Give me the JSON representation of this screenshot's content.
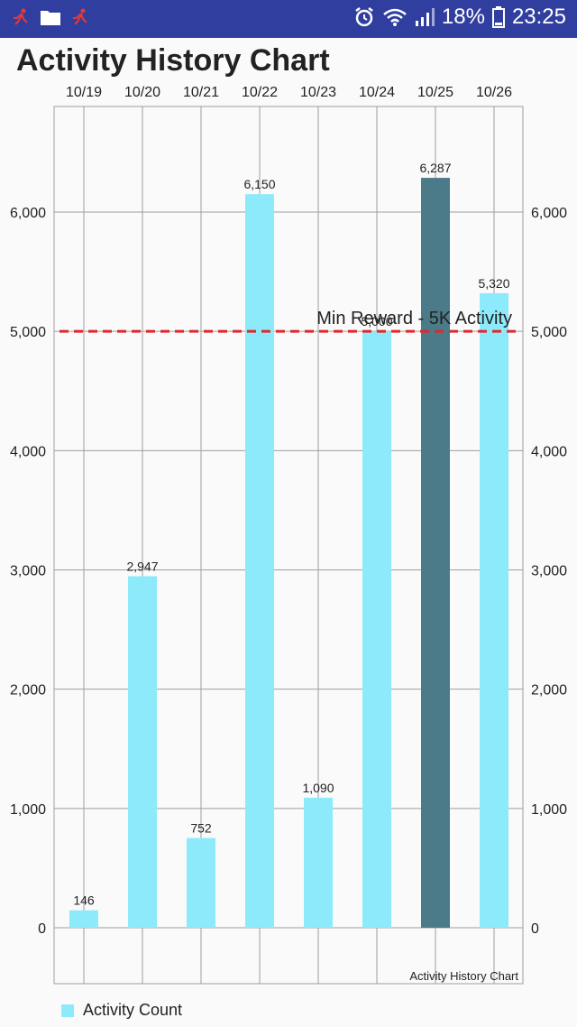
{
  "status_bar": {
    "battery": "18%",
    "time": "23:25",
    "icons": [
      "running-icon",
      "folder-icon",
      "running-icon",
      "alarm-icon",
      "wifi-icon",
      "signal-icon",
      "battery-icon"
    ]
  },
  "page": {
    "title": "Activity History Chart"
  },
  "chart_data": {
    "type": "bar",
    "title": "Activity History Chart",
    "description_label": "Activity History Chart",
    "categories": [
      "10/19",
      "10/20",
      "10/21",
      "10/22",
      "10/23",
      "10/24",
      "10/25",
      "10/26"
    ],
    "series": [
      {
        "name": "Activity Count",
        "values": [
          146,
          2947,
          752,
          6150,
          1090,
          5000,
          6287,
          5320
        ],
        "labels": [
          "146",
          "2,947",
          "752",
          "6,150",
          "1,090",
          "5,000",
          "6,287",
          "5,320"
        ]
      }
    ],
    "highlight_index": 6,
    "colors": {
      "bar": "#8ceafb",
      "highlight": "#4b7b88",
      "limit_line": "#e3262b"
    },
    "y_ticks": [
      0,
      1000,
      2000,
      3000,
      4000,
      5000,
      6000
    ],
    "y_tick_labels": [
      "0",
      "1,000",
      "2,000",
      "3,000",
      "4,000",
      "5,000",
      "6,000"
    ],
    "ylim": [
      -470,
      6900
    ],
    "limit_line": {
      "value": 5000,
      "label": "Min Reward - 5K Activity"
    },
    "grid": true,
    "legend": {
      "position": "bottom-left",
      "label": "Activity Count"
    },
    "xlabel": "",
    "ylabel": ""
  }
}
